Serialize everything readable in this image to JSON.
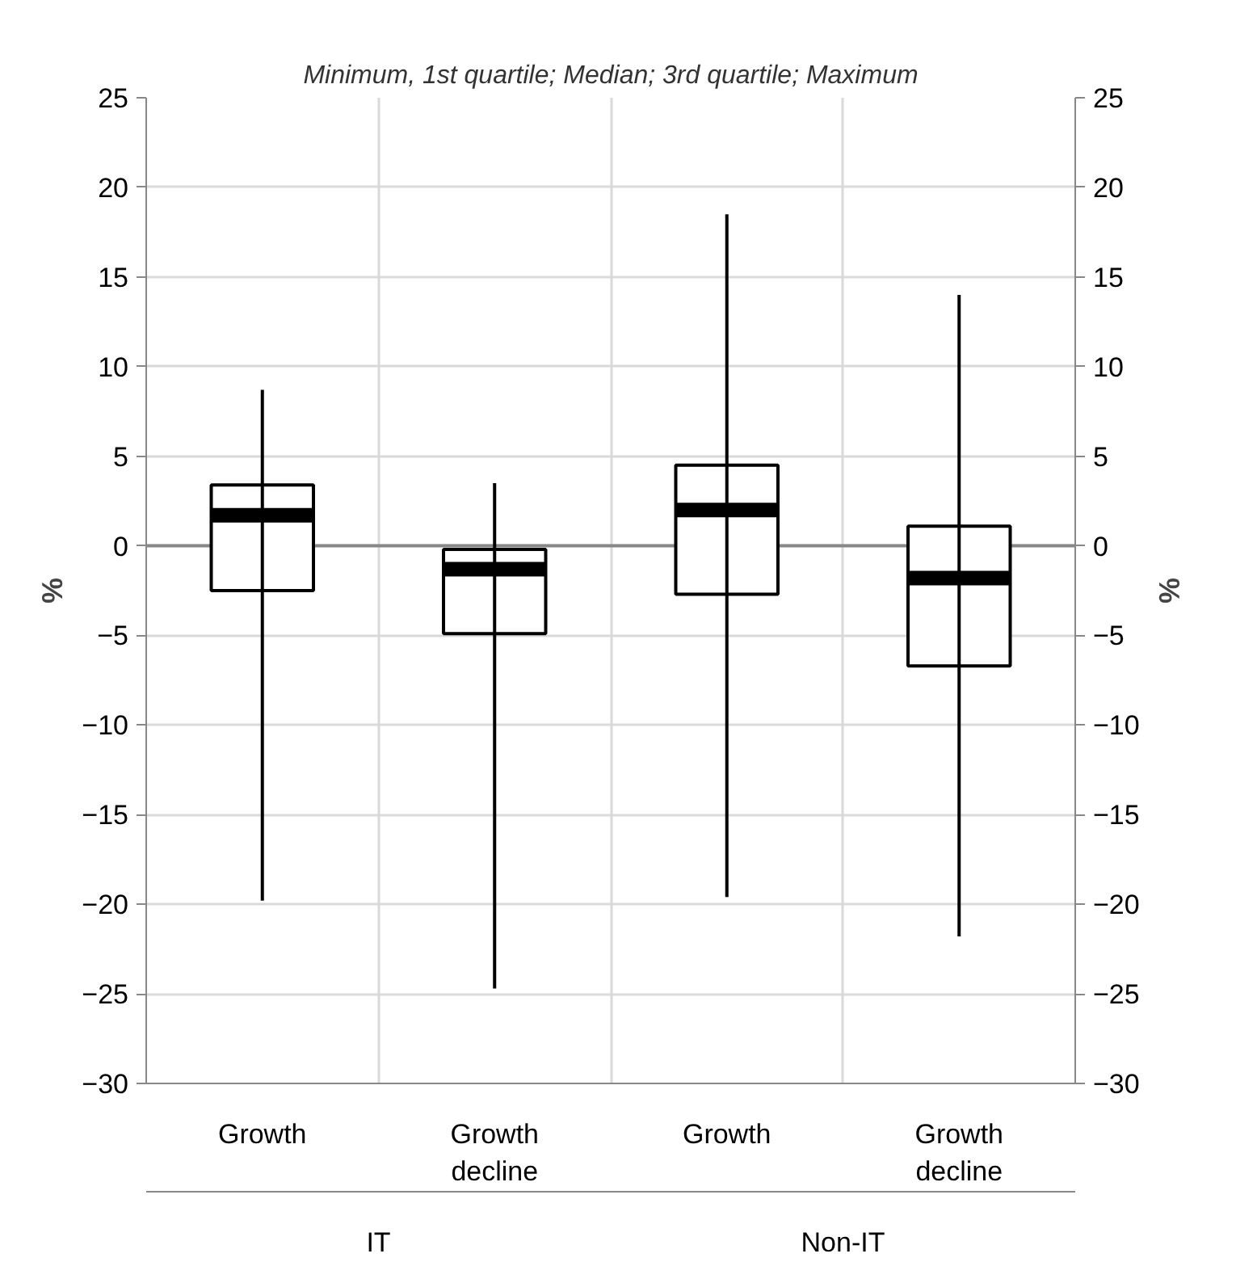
{
  "chart_data": {
    "type": "box",
    "title": "Minimum, 1st quartile; Median; 3rd quartile; Maximum",
    "categories": [
      "Growth",
      "Growth\ndecline",
      "Growth",
      "Growth\ndecline"
    ],
    "annotations": [
      "IT",
      "Non-IT"
    ],
    "boxes": [
      {
        "low": -19.8,
        "q1": -2.5,
        "median": 1.7,
        "q3": 3.4,
        "high": 8.7
      },
      {
        "low": -24.7,
        "q1": -4.9,
        "median": -1.3,
        "q3": -0.2,
        "high": 3.5
      },
      {
        "low": -19.6,
        "q1": -2.7,
        "median": 2.0,
        "q3": 4.5,
        "high": 18.5
      },
      {
        "low": -21.8,
        "q1": -6.7,
        "median": -1.8,
        "q3": 1.1,
        "high": 14.0
      }
    ],
    "ylabel": "%",
    "y2label": "%",
    "ylim": [
      -30,
      25
    ],
    "yticks": [
      -30,
      -25,
      -20,
      -15,
      -10,
      -5,
      0,
      5,
      10,
      15,
      20,
      25
    ],
    "y2lim": [
      -30,
      25
    ],
    "y2ticks": [
      -30,
      -25,
      -20,
      -15,
      -10,
      -5,
      0,
      5,
      10,
      15,
      20,
      25
    ],
    "grid": true
  }
}
